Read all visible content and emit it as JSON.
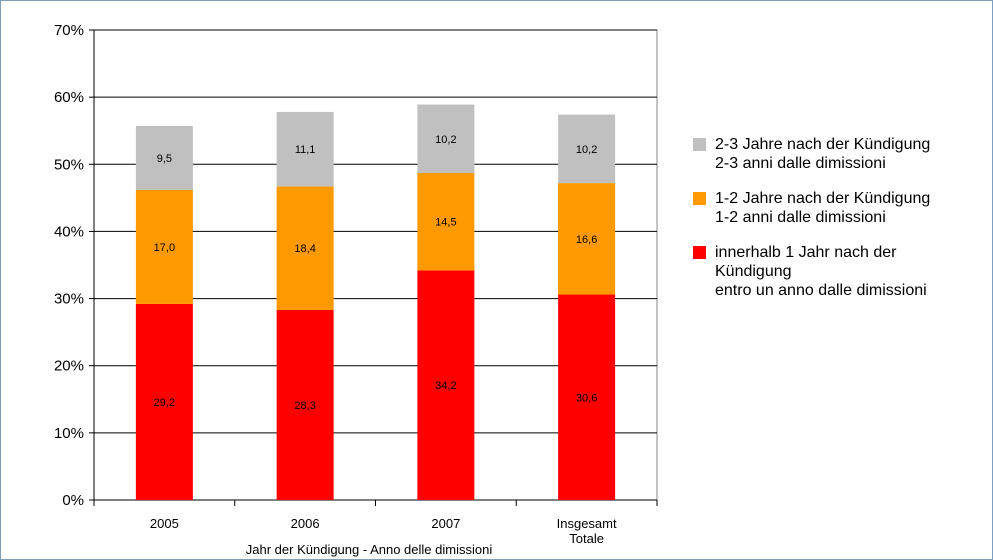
{
  "chart_data": {
    "type": "bar",
    "stacked": true,
    "categories": [
      "2005",
      "2006",
      "2007",
      "Insgesamt\nTotale"
    ],
    "series": [
      {
        "name": "innerhalb 1 Jahr nach der Kündigung\nentro un anno dalle dimissioni",
        "color": "#ff0000",
        "values": [
          29.2,
          28.3,
          34.2,
          30.6
        ],
        "labels": [
          "29,2",
          "28,3",
          "34,2",
          "30,6"
        ]
      },
      {
        "name": "1-2 Jahre nach der Kündigung\n1-2 anni dalle dimissioni",
        "color": "#ff9900",
        "values": [
          17.0,
          18.4,
          14.5,
          16.6
        ],
        "labels": [
          "17,0",
          "18,4",
          "14,5",
          "16,6"
        ]
      },
      {
        "name": "2-3 Jahre nach der Kündigung\n2-3 anni dalle dimissioni",
        "color": "#c0c0c0",
        "values": [
          9.5,
          11.1,
          10.2,
          10.2
        ],
        "labels": [
          "9,5",
          "11,1",
          "10,2",
          "10,2"
        ]
      }
    ],
    "xlabel": "Jahr der Kündigung - Anno delle dimissioni",
    "ylabel": "",
    "ylim": [
      0,
      70
    ],
    "yticks": [
      "0%",
      "10%",
      "20%",
      "30%",
      "40%",
      "50%",
      "60%",
      "70%"
    ],
    "grid": true,
    "legend_position": "right"
  },
  "legend": [
    {
      "color": "#c0c0c0",
      "lines": [
        "2-3 Jahre nach der Kündigung",
        "2-3 anni dalle dimissioni"
      ]
    },
    {
      "color": "#ff9900",
      "lines": [
        "1-2 Jahre nach der Kündigung",
        "1-2 anni dalle dimissioni"
      ]
    },
    {
      "color": "#ff0000",
      "lines": [
        "innerhalb 1 Jahr nach der",
        "Kündigung",
        "entro un anno dalle dimissioni"
      ]
    }
  ]
}
